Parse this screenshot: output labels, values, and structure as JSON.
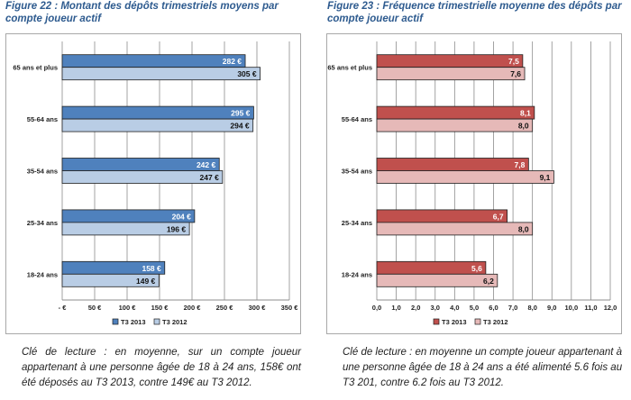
{
  "figures": [
    {
      "title": "Figure 22 : Montant des dépôts trimestriels moyens par compte joueur actif",
      "caption": "Clé de lecture : en moyenne, sur un compte joueur appartenant à une personne âgée de 18 à 24 ans, 158€ ont été déposés au T3 2013, contre 149€ au T3 2012."
    },
    {
      "title": "Figure 23 : Fréquence trimestrielle  moyenne des dépôts par compte joueur actif",
      "caption": "Clé de lecture : en moyenne un compte joueur appartenant à une personne âgée de 18 à 24 ans a été alimenté 5.6 fois au T3 201, contre 6.2 fois au T3 2012."
    }
  ],
  "chart_data": [
    {
      "type": "bar",
      "orientation": "horizontal",
      "categories": [
        "65 ans et plus",
        "55-64 ans",
        "35-54 ans",
        "25-34 ans",
        "18-24 ans"
      ],
      "series": [
        {
          "name": "T3 2013",
          "values": [
            282,
            295,
            242,
            204,
            158
          ],
          "labels": [
            "282 €",
            "295 €",
            "242 €",
            "204 €",
            "158 €"
          ],
          "color": "#4f81bd"
        },
        {
          "name": "T3 2012",
          "values": [
            305,
            294,
            247,
            196,
            149
          ],
          "labels": [
            "305 €",
            "294 €",
            "247 €",
            "196 €",
            "149 €"
          ],
          "color": "#b9cde5"
        }
      ],
      "xlim": [
        0,
        350
      ],
      "ticks": [
        0,
        50,
        100,
        150,
        200,
        250,
        300,
        350
      ],
      "tick_labels": [
        "-   €",
        "50 €",
        "100 €",
        "150 €",
        "200 €",
        "250 €",
        "300 €",
        "350 €"
      ],
      "grid": true,
      "legend": "bottom"
    },
    {
      "type": "bar",
      "orientation": "horizontal",
      "categories": [
        "65 ans et plus",
        "55-64 ans",
        "35-54 ans",
        "25-34 ans",
        "18-24 ans"
      ],
      "series": [
        {
          "name": "T3 2013",
          "values": [
            7.5,
            8.1,
            7.8,
            6.7,
            5.6
          ],
          "labels": [
            "7,5",
            "8,1",
            "7,8",
            "6,7",
            "5,6"
          ],
          "color": "#c0504d"
        },
        {
          "name": "T3 2012",
          "values": [
            7.6,
            8.0,
            9.1,
            8.0,
            6.2
          ],
          "labels": [
            "7,6",
            "8,0",
            "9,1",
            "8,0",
            "6,2"
          ],
          "color": "#e6b9b8"
        }
      ],
      "xlim": [
        0,
        12
      ],
      "ticks": [
        0,
        1,
        2,
        3,
        4,
        5,
        6,
        7,
        8,
        9,
        10,
        11,
        12
      ],
      "tick_labels": [
        "0,0",
        "1,0",
        "2,0",
        "3,0",
        "4,0",
        "5,0",
        "6,0",
        "7,0",
        "8,0",
        "9,0",
        "10,0",
        "11,0",
        "12,0"
      ],
      "grid": true,
      "legend": "bottom"
    }
  ]
}
